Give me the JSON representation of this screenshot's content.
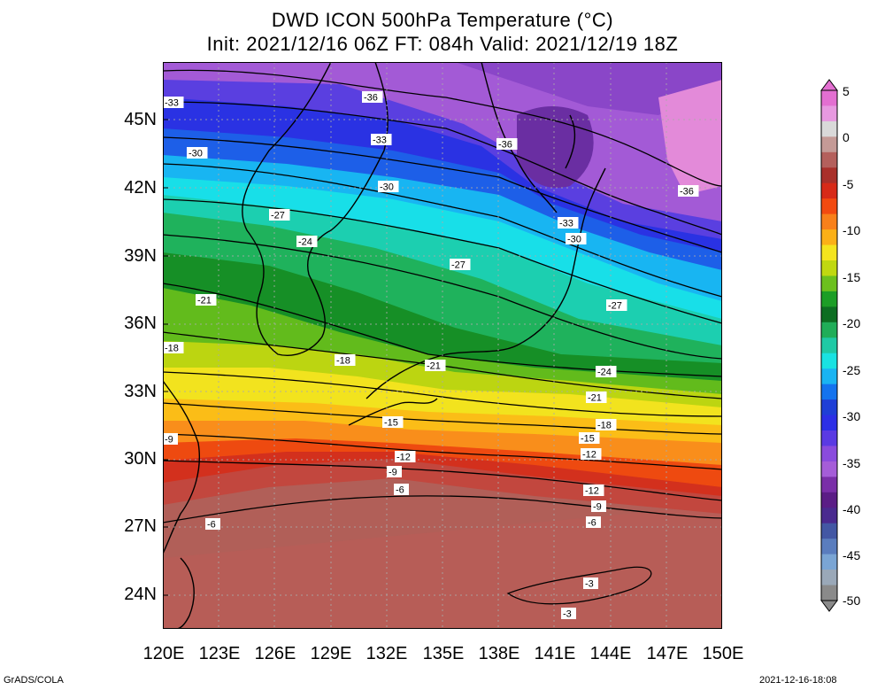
{
  "title": "DWD ICON 500hPa Temperature (°C)",
  "subtitle": "Init: 2021/12/16 06Z  FT: 084h  Valid: 2021/12/19 18Z",
  "lat_labels": [
    "45N",
    "42N",
    "39N",
    "36N",
    "33N",
    "30N",
    "27N",
    "24N"
  ],
  "lon_labels": [
    "120E",
    "123E",
    "126E",
    "129E",
    "132E",
    "135E",
    "138E",
    "141E",
    "144E",
    "147E",
    "150E"
  ],
  "colorbar": {
    "labels": [
      "5",
      "0",
      "-5",
      "-10",
      "-15",
      "-20",
      "-25",
      "-30",
      "-35",
      "-40",
      "-45",
      "-50"
    ],
    "colors": [
      "#e36fd1",
      "#e799e0",
      "#d9d9d9",
      "#c49a96",
      "#b4605c",
      "#a9302a",
      "#d72a18",
      "#f24a10",
      "#f8801a",
      "#fbb017",
      "#f4e41e",
      "#c0d810",
      "#6cc01e",
      "#1c9e26",
      "#0d6e22",
      "#20ad58",
      "#1fc9a5",
      "#19e2e2",
      "#1ab4f2",
      "#1473ee",
      "#1f3fd6",
      "#2d2fe6",
      "#5a3ae3",
      "#8a4bdd",
      "#a55dd8",
      "#7a2fa8",
      "#5b1d86",
      "#4a2a8f",
      "#4357a4",
      "#5a7dbe",
      "#7aa5d4",
      "#9aa8b8",
      "#8a8a8a"
    ]
  },
  "contour_labels": [
    {
      "text": "-36"
    },
    {
      "text": "-36"
    },
    {
      "text": "-36"
    },
    {
      "text": "-33"
    },
    {
      "text": "-33"
    },
    {
      "text": "-33"
    },
    {
      "text": "-30"
    },
    {
      "text": "-30"
    },
    {
      "text": "-30"
    },
    {
      "text": "-27"
    },
    {
      "text": "-27"
    },
    {
      "text": "-27"
    },
    {
      "text": "-24"
    },
    {
      "text": "-24"
    },
    {
      "text": "-21"
    },
    {
      "text": "-21"
    },
    {
      "text": "-21"
    },
    {
      "text": "-18"
    },
    {
      "text": "-18"
    },
    {
      "text": "-18"
    },
    {
      "text": "-15"
    },
    {
      "text": "-15"
    },
    {
      "text": "-12"
    },
    {
      "text": "-12"
    },
    {
      "text": "-12"
    },
    {
      "text": "-9"
    },
    {
      "text": "-9"
    },
    {
      "text": "-9"
    },
    {
      "text": "-6"
    },
    {
      "text": "-6"
    },
    {
      "text": "-6"
    },
    {
      "text": "-3"
    },
    {
      "text": "-3"
    }
  ],
  "footer_left": "GrADS/COLA",
  "footer_right": "2021-12-16-18:08"
}
